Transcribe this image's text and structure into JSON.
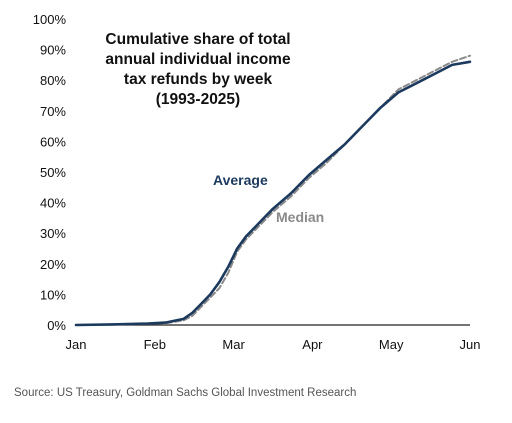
{
  "chart_data": {
    "type": "line",
    "title_lines": [
      "Cumulative share of total",
      "annual individual income",
      "tax refunds by week",
      "(1993-2025)"
    ],
    "x_categories": [
      "Jan",
      "Feb",
      "Mar",
      "Apr",
      "May",
      "Jun"
    ],
    "yticks": [
      "100%",
      "90%",
      "80%",
      "70%",
      "60%",
      "50%",
      "40%",
      "30%",
      "20%",
      "10%",
      "0%"
    ],
    "ylim": [
      0,
      100
    ],
    "grid": false,
    "x_unit": "weeks since Jan (Jun = 22)",
    "series": [
      {
        "name": "Average",
        "color": "#1c3a5e",
        "style": "solid",
        "x": [
          0,
          2,
          4,
          5,
          6,
          6.5,
          7,
          7.5,
          8,
          8.5,
          9,
          9.5,
          10,
          10.5,
          11,
          12,
          13,
          14,
          15,
          16,
          17,
          18,
          19,
          20,
          21,
          22
        ],
        "y": [
          0,
          0.2,
          0.5,
          0.8,
          2,
          4,
          7,
          10,
          14,
          19,
          25,
          29,
          32,
          35,
          38,
          43,
          49,
          54,
          59,
          65,
          71,
          76,
          79,
          82,
          85,
          86
        ]
      },
      {
        "name": "Median",
        "color": "#8a8a8a",
        "style": "dashed",
        "x": [
          0,
          2,
          4,
          5,
          6,
          6.5,
          7,
          7.5,
          8,
          8.5,
          9,
          9.5,
          10,
          10.5,
          11,
          12,
          13,
          14,
          15,
          16,
          17,
          18,
          19,
          20,
          21,
          22
        ],
        "y": [
          0,
          0.2,
          0.4,
          0.6,
          1.5,
          3,
          6,
          9,
          12,
          17,
          24,
          28,
          31,
          34,
          37,
          42,
          48,
          53,
          59,
          65,
          71,
          77,
          80,
          83,
          86,
          88
        ]
      }
    ]
  },
  "source_note": "Source: US Treasury, Goldman Sachs Global Investment Research"
}
